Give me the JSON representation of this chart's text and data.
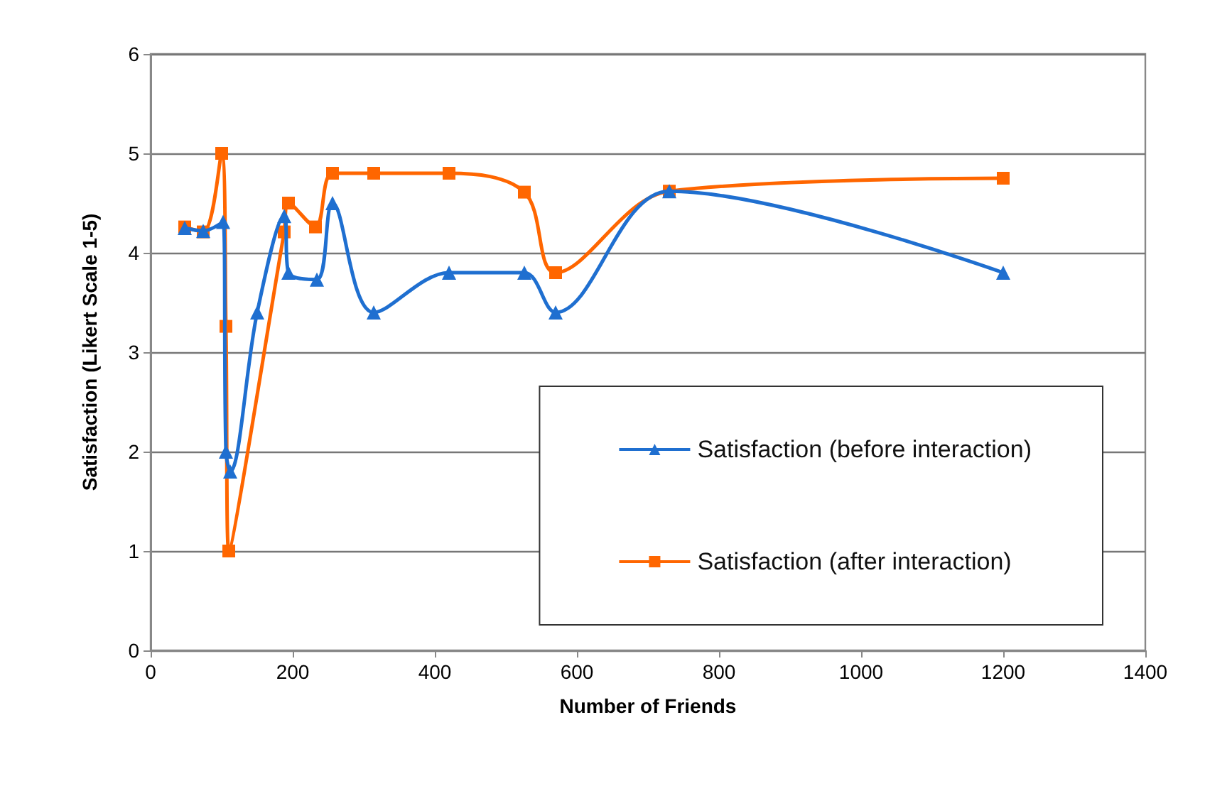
{
  "chart_data": {
    "type": "line",
    "xlabel": "Number of Friends",
    "ylabel": "Satisfaction (Likert Scale 1-5)",
    "xlim": [
      0,
      1400
    ],
    "xticks": [
      0,
      200,
      400,
      600,
      800,
      1000,
      1200,
      1400
    ],
    "ylim": [
      0,
      6
    ],
    "yticks": [
      0,
      1,
      2,
      3,
      4,
      5,
      6
    ],
    "grid": "y",
    "legend": "bottom right",
    "series": [
      {
        "name": "Satisfaction (before interaction)",
        "color": "#1f6fd0",
        "marker": "triangle",
        "x": [
          48,
          74,
          102,
          106,
          112,
          150,
          188,
          194,
          234,
          256,
          314,
          420,
          526,
          570,
          730,
          1200
        ],
        "values": [
          4.25,
          4.22,
          4.31,
          2.0,
          1.8,
          3.4,
          4.37,
          3.8,
          3.73,
          4.5,
          3.4,
          3.8,
          3.8,
          3.4,
          4.62,
          3.8
        ]
      },
      {
        "name": "Satisfaction (after interaction)",
        "color": "#ff6600",
        "marker": "square",
        "x": [
          48,
          74,
          100,
          106,
          110,
          188,
          194,
          232,
          256,
          314,
          420,
          526,
          570,
          730,
          1200
        ],
        "values": [
          4.26,
          4.21,
          5.0,
          3.26,
          1.0,
          4.21,
          4.5,
          4.26,
          4.8,
          4.8,
          4.8,
          4.61,
          3.8,
          4.62,
          4.75
        ]
      }
    ]
  }
}
